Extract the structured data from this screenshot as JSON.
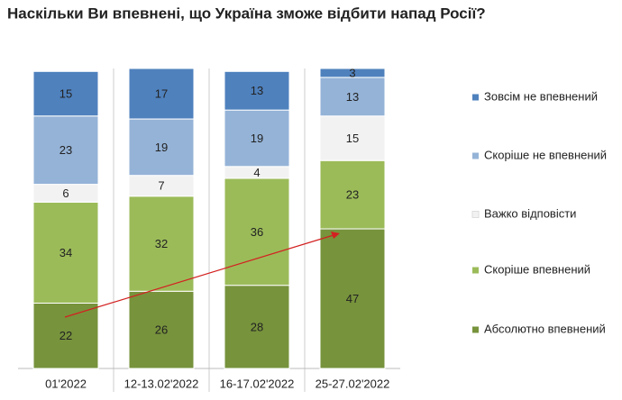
{
  "chart_data": {
    "type": "stacked_bar",
    "title": "Наскільки Ви впевнені, що Україна зможе відбити напад Росії?",
    "categories": [
      "01'2022",
      "12-13.02'2022",
      "16-17.02'2022",
      "25-27.02'2022"
    ],
    "series": [
      {
        "name": "Абсолютно впевнений",
        "color": "#77933c",
        "values": [
          22,
          26,
          28,
          47
        ]
      },
      {
        "name": "Скоріше впевнений",
        "color": "#9bbb59",
        "values": [
          34,
          32,
          36,
          23
        ]
      },
      {
        "name": "Важко відповісти",
        "color": "#f2f2f2",
        "values": [
          6,
          7,
          4,
          15
        ]
      },
      {
        "name": "Скоріше не впевнений",
        "color": "#95b3d7",
        "values": [
          23,
          19,
          19,
          13
        ]
      },
      {
        "name": "Зовсім не впевнений",
        "color": "#4f81bd",
        "values": [
          15,
          17,
          13,
          3
        ]
      }
    ]
  }
}
